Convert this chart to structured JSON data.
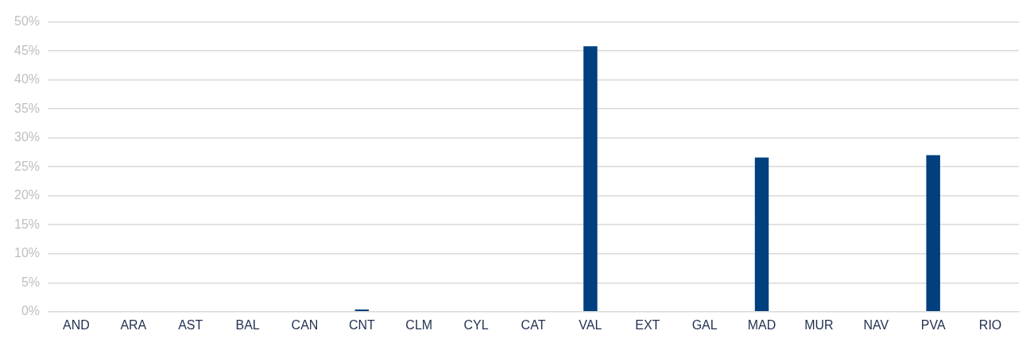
{
  "chart_data": {
    "type": "bar",
    "categories": [
      "AND",
      "ARA",
      "AST",
      "BAL",
      "CAN",
      "CNT",
      "CLM",
      "CYL",
      "CAT",
      "VAL",
      "EXT",
      "GAL",
      "MAD",
      "MUR",
      "NAV",
      "PVA",
      "RIO"
    ],
    "values": [
      0,
      0,
      0,
      0,
      0,
      0.4,
      0,
      0,
      0,
      45.8,
      0,
      0,
      26.6,
      0,
      0,
      27.0,
      0
    ],
    "color": "#00407f",
    "ylim": [
      0,
      50
    ],
    "yticks": [
      {
        "value": 0,
        "label": "0%"
      },
      {
        "value": 5,
        "label": "5%"
      },
      {
        "value": 10,
        "label": "10%"
      },
      {
        "value": 15,
        "label": "15%"
      },
      {
        "value": 20,
        "label": "20%"
      },
      {
        "value": 25,
        "label": "25%"
      },
      {
        "value": 30,
        "label": "30%"
      },
      {
        "value": 35,
        "label": "35%"
      },
      {
        "value": 40,
        "label": "40%"
      },
      {
        "value": 45,
        "label": "45%"
      },
      {
        "value": 50,
        "label": "50%"
      }
    ],
    "grid": "y",
    "legend": false
  }
}
